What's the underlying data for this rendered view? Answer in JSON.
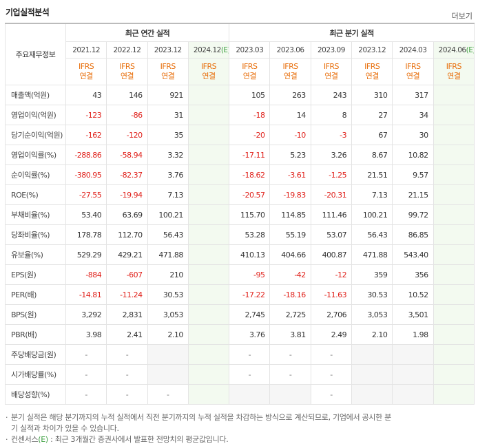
{
  "header": {
    "title": "기업실적분석",
    "more": "더보기"
  },
  "table": {
    "corner": "주요재무정보",
    "groups": [
      "최근 연간 실적",
      "최근 분기 실적"
    ],
    "columns": [
      {
        "period": "2021.12",
        "basis": "IFRS",
        "scope": "연결"
      },
      {
        "period": "2022.12",
        "basis": "IFRS",
        "scope": "연결"
      },
      {
        "period": "2023.12",
        "basis": "IFRS",
        "scope": "연결"
      },
      {
        "period": "2024.12",
        "estimate": "(E)",
        "basis": "IFRS",
        "scope": "연결"
      },
      {
        "period": "2023.03",
        "basis": "IFRS",
        "scope": "연결"
      },
      {
        "period": "2023.06",
        "basis": "IFRS",
        "scope": "연결"
      },
      {
        "period": "2023.09",
        "basis": "IFRS",
        "scope": "연결"
      },
      {
        "period": "2023.12",
        "basis": "IFRS",
        "scope": "연결"
      },
      {
        "period": "2024.03",
        "basis": "IFRS",
        "scope": "연결"
      },
      {
        "period": "2024.06",
        "estimate": "(E)",
        "basis": "IFRS",
        "scope": "연결"
      }
    ],
    "rows": [
      {
        "label": "매출액(억원)",
        "cells": [
          "43",
          "146",
          "921",
          null,
          "105",
          "263",
          "243",
          "310",
          "317",
          null
        ]
      },
      {
        "label": "영업이익(억원)",
        "cells": [
          "-123",
          "-86",
          "31",
          null,
          "-18",
          "14",
          "8",
          "27",
          "34",
          null
        ]
      },
      {
        "label": "당기순이익(억원)",
        "cells": [
          "-162",
          "-120",
          "35",
          null,
          "-20",
          "-10",
          "-3",
          "67",
          "30",
          null
        ]
      },
      {
        "label": "영업이익률(%)",
        "cells": [
          "-288.86",
          "-58.94",
          "3.32",
          null,
          "-17.11",
          "5.23",
          "3.26",
          "8.67",
          "10.82",
          null
        ]
      },
      {
        "label": "순이익률(%)",
        "cells": [
          "-380.95",
          "-82.37",
          "3.76",
          null,
          "-18.62",
          "-3.61",
          "-1.25",
          "21.51",
          "9.57",
          null
        ]
      },
      {
        "label": "ROE(%)",
        "cells": [
          "-27.55",
          "-19.94",
          "7.13",
          null,
          "-20.57",
          "-19.83",
          "-20.31",
          "7.13",
          "21.15",
          null
        ]
      },
      {
        "label": "부채비율(%)",
        "cells": [
          "53.40",
          "63.69",
          "100.21",
          null,
          "115.70",
          "114.85",
          "111.46",
          "100.21",
          "99.72",
          null
        ]
      },
      {
        "label": "당좌비율(%)",
        "cells": [
          "178.78",
          "112.70",
          "56.43",
          null,
          "53.28",
          "55.19",
          "53.07",
          "56.43",
          "86.85",
          null
        ]
      },
      {
        "label": "유보율(%)",
        "cells": [
          "529.29",
          "429.21",
          "471.88",
          null,
          "410.13",
          "404.66",
          "400.87",
          "471.88",
          "543.40",
          null
        ]
      },
      {
        "label": "EPS(원)",
        "cells": [
          "-884",
          "-607",
          "210",
          null,
          "-95",
          "-42",
          "-12",
          "359",
          "356",
          null
        ]
      },
      {
        "label": "PER(배)",
        "cells": [
          "-14.81",
          "-11.24",
          "30.53",
          null,
          "-17.22",
          "-18.16",
          "-11.63",
          "30.53",
          "10.52",
          null
        ]
      },
      {
        "label": "BPS(원)",
        "cells": [
          "3,292",
          "2,831",
          "3,053",
          null,
          "2,745",
          "2,725",
          "2,706",
          "3,053",
          "3,501",
          null
        ]
      },
      {
        "label": "PBR(배)",
        "cells": [
          "3.98",
          "2.41",
          "2.10",
          null,
          "3.76",
          "3.81",
          "2.49",
          "2.10",
          "1.98",
          null
        ]
      },
      {
        "label": "주당배당금(원)",
        "cells": [
          "-",
          "-",
          null,
          null,
          "-",
          "-",
          "-",
          null,
          null,
          null
        ]
      },
      {
        "label": "시가배당률(%)",
        "cells": [
          "-",
          "-",
          null,
          null,
          "-",
          "-",
          "-",
          null,
          null,
          null
        ]
      },
      {
        "label": "배당성향(%)",
        "cells": [
          "-",
          "-",
          "-",
          null,
          null,
          null,
          "-",
          null,
          null,
          null
        ]
      }
    ]
  },
  "notes": [
    {
      "text": "분기 실적은 해당 분기까지의 누적 실적에서 직전 분기까지의 누적 실적을 차감하는 방식으로 계산되므로, 기업에서 공시한 분기 실적과 차이가 있을 수 있습니다."
    },
    {
      "prefix": "컨센서스",
      "estimate": "(E)",
      "text": " : 최근 3개월간 증권사에서 발표한 전망치의 평균값입니다."
    }
  ]
}
